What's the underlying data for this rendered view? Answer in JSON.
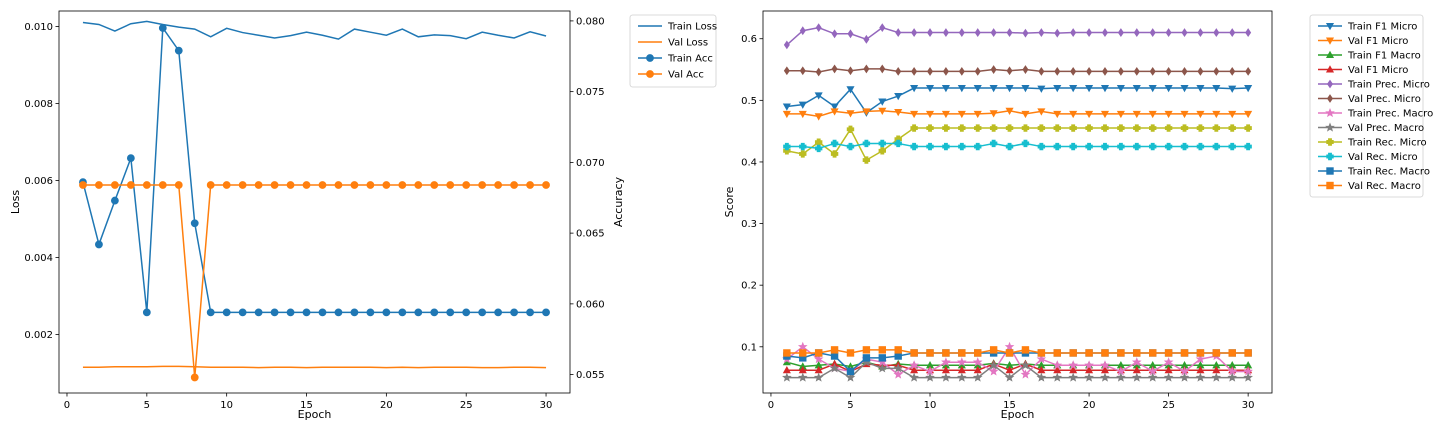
{
  "colors": {
    "tab_blue": "#1f77b4",
    "tab_orange": "#ff7f0e",
    "tab_green": "#2ca02c",
    "tab_red": "#d62728",
    "tab_purple": "#9467bd",
    "tab_brown": "#8c564b",
    "tab_pink": "#e377c2",
    "tab_gray": "#7f7f7f",
    "tab_olive": "#bcbd22",
    "tab_cyan": "#17becf"
  },
  "chart_data": [
    {
      "type": "line",
      "xlabel": "Epoch",
      "ylabel": "Loss",
      "ylabel_right": "Accuracy",
      "xlim": [
        -0.5,
        31.5
      ],
      "ylim": [
        0.00048,
        0.0104
      ],
      "ylim_right": [
        0.0537,
        0.0807
      ],
      "x_ticks": [
        0,
        5,
        10,
        15,
        20,
        25,
        30
      ],
      "y_ticks": [
        0.002,
        0.004,
        0.006,
        0.008,
        0.01
      ],
      "y_tick_labels": [
        "0.002",
        "0.004",
        "0.006",
        "0.008",
        "0.010"
      ],
      "y_ticks_right": [
        0.055,
        0.06,
        0.065,
        0.07,
        0.075,
        0.08
      ],
      "y_tick_labels_right": [
        "0.055",
        "0.060",
        "0.065",
        "0.070",
        "0.075",
        "0.080"
      ],
      "legend_position": "outside-right",
      "x": [
        1,
        2,
        3,
        4,
        5,
        6,
        7,
        8,
        9,
        10,
        11,
        12,
        13,
        14,
        15,
        16,
        17,
        18,
        19,
        20,
        21,
        22,
        23,
        24,
        25,
        26,
        27,
        28,
        29,
        30
      ],
      "series": [
        {
          "name": "Train Loss",
          "axis": "left",
          "color": "#1f77b4",
          "marker": "none",
          "values": [
            0.0101,
            0.01005,
            0.00988,
            0.01007,
            0.01013,
            0.01005,
            0.00998,
            0.00993,
            0.00973,
            0.00995,
            0.00984,
            0.00977,
            0.0097,
            0.00976,
            0.00985,
            0.00977,
            0.00967,
            0.00993,
            0.00985,
            0.00977,
            0.00993,
            0.00973,
            0.00978,
            0.00976,
            0.00968,
            0.00985,
            0.00977,
            0.0097,
            0.00986,
            0.00975
          ]
        },
        {
          "name": "Val Loss",
          "axis": "left",
          "color": "#ff7f0e",
          "marker": "none",
          "values": [
            0.00115,
            0.00115,
            0.00116,
            0.00116,
            0.00116,
            0.00117,
            0.00117,
            0.00116,
            0.00115,
            0.00115,
            0.00115,
            0.00114,
            0.00115,
            0.00115,
            0.00114,
            0.00115,
            0.00115,
            0.00115,
            0.00115,
            0.00114,
            0.00115,
            0.00114,
            0.00115,
            0.00115,
            0.00115,
            0.00114,
            0.00114,
            0.00115,
            0.00115,
            0.00114
          ]
        },
        {
          "name": "Train Acc",
          "axis": "right",
          "color": "#1f77b4",
          "marker": "circle",
          "values": [
            0.0686,
            0.0642,
            0.0673,
            0.0703,
            0.0594,
            0.0795,
            0.0779,
            0.0657,
            0.0594,
            0.0594,
            0.0594,
            0.0594,
            0.0594,
            0.0594,
            0.0594,
            0.0594,
            0.0594,
            0.0594,
            0.0594,
            0.0594,
            0.0594,
            0.0594,
            0.0594,
            0.0594,
            0.0594,
            0.0594,
            0.0594,
            0.0594,
            0.0594,
            0.0594
          ]
        },
        {
          "name": "Val Acc",
          "axis": "right",
          "color": "#ff7f0e",
          "marker": "circle",
          "values": [
            0.0684,
            0.0684,
            0.0684,
            0.0684,
            0.0684,
            0.0684,
            0.0684,
            0.0548,
            0.0684,
            0.0684,
            0.0684,
            0.0684,
            0.0684,
            0.0684,
            0.0684,
            0.0684,
            0.0684,
            0.0684,
            0.0684,
            0.0684,
            0.0684,
            0.0684,
            0.0684,
            0.0684,
            0.0684,
            0.0684,
            0.0684,
            0.0684,
            0.0684,
            0.0684
          ]
        }
      ]
    },
    {
      "type": "line",
      "xlabel": "Epoch",
      "ylabel": "Score",
      "xlim": [
        -0.5,
        31.5
      ],
      "ylim": [
        0.025,
        0.645
      ],
      "x_ticks": [
        0,
        5,
        10,
        15,
        20,
        25,
        30
      ],
      "y_ticks": [
        0.1,
        0.2,
        0.3,
        0.4,
        0.5,
        0.6
      ],
      "y_tick_labels": [
        "0.1",
        "0.2",
        "0.3",
        "0.4",
        "0.5",
        "0.6"
      ],
      "legend_position": "outside-right",
      "x": [
        1,
        2,
        3,
        4,
        5,
        6,
        7,
        8,
        9,
        10,
        11,
        12,
        13,
        14,
        15,
        16,
        17,
        18,
        19,
        20,
        21,
        22,
        23,
        24,
        25,
        26,
        27,
        28,
        29,
        30
      ],
      "series": [
        {
          "name": "Train F1 Micro",
          "color": "#1f77b4",
          "marker": "tri-down",
          "values": [
            0.49,
            0.493,
            0.508,
            0.49,
            0.518,
            0.48,
            0.498,
            0.507,
            0.52,
            0.52,
            0.52,
            0.52,
            0.52,
            0.52,
            0.52,
            0.52,
            0.519,
            0.52,
            0.52,
            0.52,
            0.52,
            0.52,
            0.52,
            0.52,
            0.52,
            0.52,
            0.52,
            0.52,
            0.519,
            0.52
          ]
        },
        {
          "name": "Val F1 Micro",
          "color": "#ff7f0e",
          "marker": "tri-down",
          "values": [
            0.478,
            0.478,
            0.474,
            0.482,
            0.479,
            0.482,
            0.483,
            0.481,
            0.478,
            0.478,
            0.478,
            0.478,
            0.478,
            0.479,
            0.483,
            0.478,
            0.482,
            0.478,
            0.478,
            0.478,
            0.478,
            0.478,
            0.478,
            0.478,
            0.478,
            0.478,
            0.478,
            0.478,
            0.478,
            0.478
          ]
        },
        {
          "name": "Train F1 Macro",
          "color": "#2ca02c",
          "marker": "tri-up",
          "values": [
            0.075,
            0.068,
            0.07,
            0.072,
            0.068,
            0.075,
            0.068,
            0.072,
            0.07,
            0.07,
            0.07,
            0.07,
            0.07,
            0.073,
            0.07,
            0.072,
            0.07,
            0.07,
            0.07,
            0.07,
            0.07,
            0.07,
            0.07,
            0.07,
            0.07,
            0.07,
            0.07,
            0.07,
            0.07,
            0.07
          ]
        },
        {
          "name": "Val F1 Micro",
          "color": "#d62728",
          "marker": "tri-up",
          "values": [
            0.062,
            0.062,
            0.062,
            0.072,
            0.06,
            0.072,
            0.07,
            0.07,
            0.062,
            0.062,
            0.062,
            0.062,
            0.062,
            0.072,
            0.062,
            0.072,
            0.062,
            0.062,
            0.062,
            0.062,
            0.062,
            0.062,
            0.062,
            0.062,
            0.062,
            0.062,
            0.062,
            0.062,
            0.062,
            0.062
          ]
        },
        {
          "name": "Train Prec. Micro",
          "color": "#9467bd",
          "marker": "diamond",
          "values": [
            0.59,
            0.613,
            0.618,
            0.608,
            0.608,
            0.599,
            0.618,
            0.61,
            0.61,
            0.61,
            0.61,
            0.61,
            0.61,
            0.61,
            0.61,
            0.609,
            0.61,
            0.609,
            0.61,
            0.61,
            0.61,
            0.61,
            0.61,
            0.61,
            0.61,
            0.61,
            0.61,
            0.61,
            0.61,
            0.61
          ]
        },
        {
          "name": "Val Prec. Micro",
          "color": "#8c564b",
          "marker": "diamond",
          "values": [
            0.548,
            0.548,
            0.546,
            0.551,
            0.548,
            0.551,
            0.551,
            0.547,
            0.547,
            0.547,
            0.547,
            0.547,
            0.547,
            0.55,
            0.548,
            0.55,
            0.547,
            0.547,
            0.547,
            0.547,
            0.547,
            0.547,
            0.547,
            0.547,
            0.547,
            0.547,
            0.547,
            0.547,
            0.547,
            0.547
          ]
        },
        {
          "name": "Train Prec. Macro",
          "color": "#e377c2",
          "marker": "star",
          "values": [
            0.08,
            0.1,
            0.08,
            0.065,
            0.06,
            0.08,
            0.075,
            0.055,
            0.07,
            0.06,
            0.075,
            0.075,
            0.075,
            0.06,
            0.1,
            0.055,
            0.08,
            0.07,
            0.07,
            0.07,
            0.07,
            0.06,
            0.075,
            0.06,
            0.075,
            0.06,
            0.08,
            0.085,
            0.06,
            0.06
          ]
        },
        {
          "name": "Val Prec. Macro",
          "color": "#7f7f7f",
          "marker": "star",
          "values": [
            0.05,
            0.05,
            0.05,
            0.065,
            0.05,
            0.075,
            0.065,
            0.065,
            0.05,
            0.05,
            0.05,
            0.05,
            0.05,
            0.07,
            0.05,
            0.07,
            0.05,
            0.05,
            0.05,
            0.05,
            0.05,
            0.05,
            0.05,
            0.05,
            0.05,
            0.05,
            0.05,
            0.05,
            0.05,
            0.05
          ]
        },
        {
          "name": "Train Rec. Micro",
          "color": "#bcbd22",
          "marker": "plus",
          "values": [
            0.418,
            0.413,
            0.432,
            0.413,
            0.453,
            0.403,
            0.418,
            0.437,
            0.455,
            0.455,
            0.455,
            0.455,
            0.455,
            0.455,
            0.455,
            0.455,
            0.455,
            0.455,
            0.455,
            0.455,
            0.455,
            0.455,
            0.455,
            0.455,
            0.455,
            0.455,
            0.455,
            0.455,
            0.455,
            0.455
          ]
        },
        {
          "name": "Val Rec. Micro",
          "color": "#17becf",
          "marker": "plus",
          "values": [
            0.425,
            0.425,
            0.422,
            0.43,
            0.425,
            0.43,
            0.43,
            0.43,
            0.425,
            0.425,
            0.425,
            0.425,
            0.425,
            0.43,
            0.425,
            0.43,
            0.425,
            0.425,
            0.425,
            0.425,
            0.425,
            0.425,
            0.425,
            0.425,
            0.425,
            0.425,
            0.425,
            0.425,
            0.425,
            0.425
          ]
        },
        {
          "name": "Train Rec. Macro",
          "color": "#1f77b4",
          "marker": "square",
          "values": [
            0.085,
            0.082,
            0.09,
            0.085,
            0.06,
            0.082,
            0.082,
            0.085,
            0.09,
            0.09,
            0.09,
            0.09,
            0.09,
            0.09,
            0.09,
            0.09,
            0.09,
            0.09,
            0.09,
            0.09,
            0.09,
            0.09,
            0.09,
            0.09,
            0.09,
            0.09,
            0.09,
            0.09,
            0.09,
            0.09
          ]
        },
        {
          "name": "Val Rec. Macro",
          "color": "#ff7f0e",
          "marker": "square",
          "values": [
            0.09,
            0.09,
            0.09,
            0.095,
            0.09,
            0.095,
            0.095,
            0.095,
            0.09,
            0.09,
            0.09,
            0.09,
            0.09,
            0.095,
            0.09,
            0.095,
            0.09,
            0.09,
            0.09,
            0.09,
            0.09,
            0.09,
            0.09,
            0.09,
            0.09,
            0.09,
            0.09,
            0.09,
            0.09,
            0.09
          ]
        }
      ]
    }
  ]
}
